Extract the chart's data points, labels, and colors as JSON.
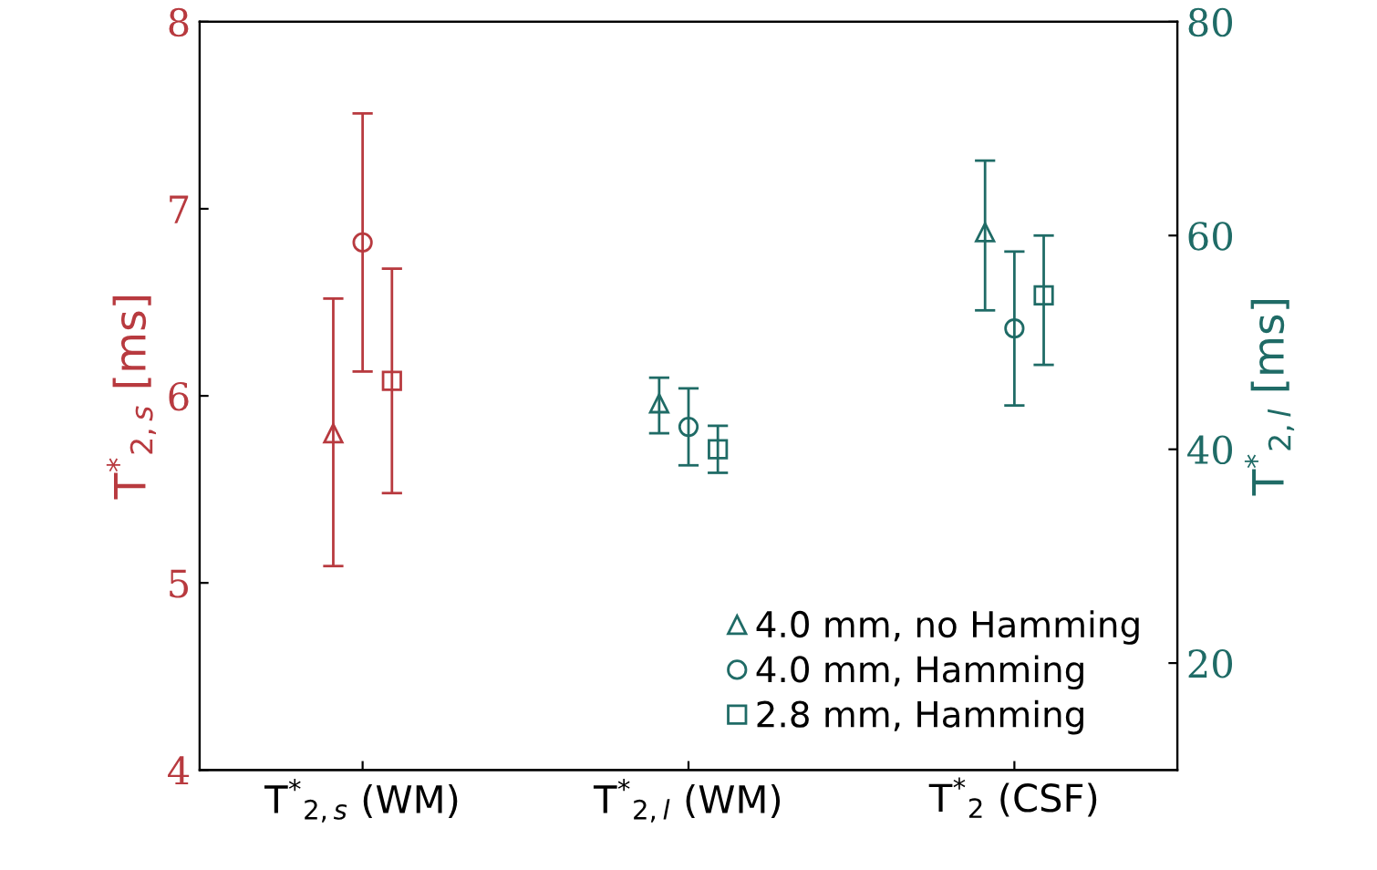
{
  "chart_data": {
    "type": "scatter",
    "categories": [
      "T$^{*}$$_{2,s}$ (WM)",
      "T$^{*}$$_{2,l}$ (WM)",
      "T$^{*}$$_{2}$ (CSF)"
    ],
    "ylabel": "T$^{*}$$_{2,s}$ [ms]",
    "y2label": "T$^{*}$$_{2,l}$ [ms]",
    "ylim": [
      4,
      8
    ],
    "yticks": [
      4,
      5,
      6,
      7,
      8
    ],
    "y2lim": [
      10,
      80
    ],
    "y2ticks": [
      20,
      40,
      60,
      80
    ],
    "grid": false,
    "legend": "bottom right",
    "series": [
      {
        "color": "#b83a3f",
        "marker": "triangle",
        "values": [
          5.8,
          null,
          null
        ],
        "errors": [
          [
            5.09,
            6.52
          ],
          null,
          null
        ]
      },
      {
        "color": "#b83a3f",
        "marker": "circle",
        "values": [
          6.82,
          null,
          null
        ],
        "errors": [
          [
            6.13,
            7.51
          ],
          null,
          null
        ]
      },
      {
        "color": "#b83a3f",
        "marker": "square",
        "values": [
          6.08,
          null,
          null
        ],
        "errors": [
          [
            5.48,
            6.68
          ],
          null,
          null
        ]
      },
      {
        "name": "4.0 mm, no Hamming",
        "color": "#1f6b66",
        "marker": "triangle",
        "axis": "y2",
        "values": [
          null,
          44.3,
          60.3
        ],
        "errors": [
          null,
          [
            41.5,
            46.7
          ],
          [
            53.0,
            67.0
          ]
        ]
      },
      {
        "name": "4.0 mm, Hamming",
        "color": "#1f6b66",
        "marker": "circle",
        "axis": "y2",
        "values": [
          null,
          42.1,
          51.3
        ],
        "errors": [
          null,
          [
            38.5,
            45.7
          ],
          [
            44.1,
            58.5
          ]
        ]
      },
      {
        "name": "2.8 mm, Hamming",
        "color": "#1f6b66",
        "marker": "square",
        "axis": "y2",
        "values": [
          null,
          40.0,
          54.4
        ],
        "errors": [
          null,
          [
            37.8,
            42.2
          ],
          [
            47.9,
            60.0
          ]
        ]
      }
    ]
  }
}
